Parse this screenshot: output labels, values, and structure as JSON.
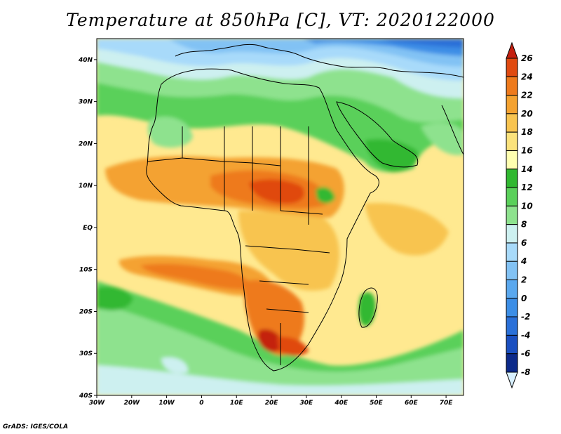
{
  "title": "Temperature at 850hPa [C], VT: 2020122000",
  "credit": "GrADS: IGES/COLA",
  "map": {
    "lon_range": [
      -30,
      75
    ],
    "lat_range": [
      -40,
      45
    ],
    "x_ticks": [
      "30W",
      "20W",
      "10W",
      "0",
      "10E",
      "20E",
      "30E",
      "40E",
      "50E",
      "60E",
      "70E"
    ],
    "y_ticks": [
      "40S",
      "30S",
      "20S",
      "10S",
      "EQ",
      "10N",
      "20N",
      "30N",
      "40N"
    ]
  },
  "colorbar": {
    "levels": [
      "26",
      "24",
      "22",
      "20",
      "18",
      "16",
      "14",
      "12",
      "10",
      "8",
      "6",
      "4",
      "2",
      "0",
      "-2",
      "-4",
      "-6",
      "-8"
    ],
    "colors": [
      "#d8f0ff",
      "#0c2a8a",
      "#1a4fc0",
      "#2a70d8",
      "#3c8ee6",
      "#5aa8ee",
      "#82c2f4",
      "#a8dafa",
      "#cdf0f0",
      "#8ee28e",
      "#5ad05a",
      "#30b830",
      "#ffffb0",
      "#fbe27c",
      "#f8c450",
      "#f4a230",
      "#ee7a1c",
      "#e04a10",
      "#c42010"
    ]
  },
  "legend_entries": [
    {
      "value": 24,
      "color": "#e04a10"
    },
    {
      "value": 22,
      "color": "#ee7a1c"
    },
    {
      "value": 20,
      "color": "#f4a230"
    },
    {
      "value": 18,
      "color": "#f8c450"
    },
    {
      "value": 16,
      "color": "#fbe27c"
    },
    {
      "value": 14,
      "color": "#ffffb0"
    },
    {
      "value": 12,
      "color": "#30b830"
    },
    {
      "value": 10,
      "color": "#5ad05a"
    },
    {
      "value": 8,
      "color": "#8ee28e"
    }
  ]
}
